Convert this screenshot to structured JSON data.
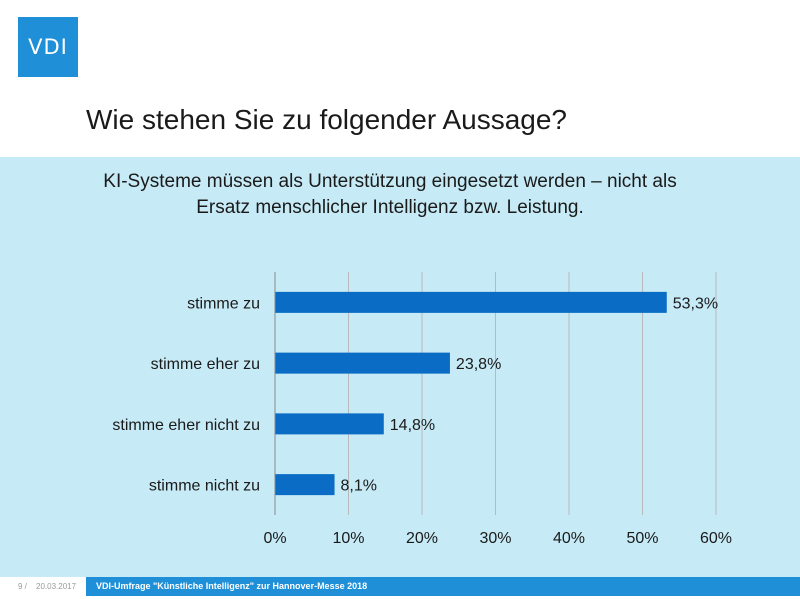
{
  "logo": {
    "text": "VDI"
  },
  "slide": {
    "title": "Wie stehen Sie zu folgender Aussage?"
  },
  "footer": {
    "page": "9 /",
    "date": "20.03.2017",
    "text": "VDI-Umfrage \"Künstliche Intelligenz\" zur Hannover-Messe 2018"
  },
  "colors": {
    "accent": "#1f8fd8",
    "bar": "#0a6cc4",
    "background_band": "#c6eaf6",
    "grid": "#b9b9b9"
  },
  "chart_data": {
    "type": "bar",
    "orientation": "horizontal",
    "title": "KI-Systeme müssen als Unterstützung eingesetzt werden – nicht als Ersatz menschlicher Intelligenz bzw. Leistung.",
    "categories": [
      "stimme zu",
      "stimme eher zu",
      "stimme eher nicht zu",
      "stimme nicht zu"
    ],
    "values": [
      53.3,
      23.8,
      14.8,
      8.1
    ],
    "data_labels": [
      "53,3%",
      "23,8%",
      "14,8%",
      "8,1%"
    ],
    "xlim": [
      0,
      60
    ],
    "ticks": [
      0,
      10,
      20,
      30,
      40,
      50,
      60
    ],
    "tick_labels": [
      "0%",
      "10%",
      "20%",
      "30%",
      "40%",
      "50%",
      "60%"
    ],
    "grid": true,
    "legend": false
  }
}
